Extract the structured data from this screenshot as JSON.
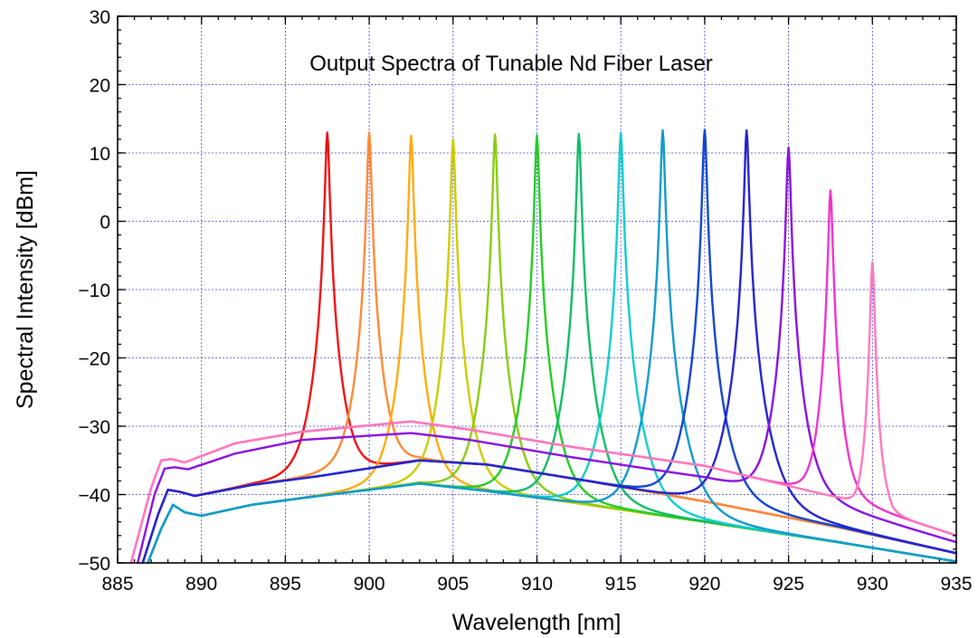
{
  "chart_data": {
    "type": "line",
    "title": "Output Spectra of Tunable Nd Fiber Laser",
    "xlabel": "Wavelength [nm]",
    "ylabel": "Spectral Intensity [dBm]",
    "xlim": [
      885,
      935
    ],
    "ylim": [
      -50,
      30
    ],
    "xticks": [
      "885",
      "890",
      "895",
      "900",
      "905",
      "910",
      "915",
      "920",
      "925",
      "930",
      "935"
    ],
    "yticks": [
      "30",
      "20",
      "10",
      "0",
      "−10",
      "−20",
      "−30",
      "−40",
      "−50"
    ],
    "grid": true,
    "legend": "none",
    "series": [
      {
        "color": "#ee1111",
        "peak_nm": 897.5,
        "peak_dbm": 13.0,
        "floor_dbm": -37.5,
        "shape": "upper-mid"
      },
      {
        "color": "#ff8833",
        "peak_nm": 900.0,
        "peak_dbm": 13.0,
        "floor_dbm": -36.5,
        "shape": "upper-mid"
      },
      {
        "color": "#ffaa11",
        "peak_nm": 902.5,
        "peak_dbm": 12.5,
        "floor_dbm": -40.0,
        "shape": "lower"
      },
      {
        "color": "#cccc00",
        "peak_nm": 905.0,
        "peak_dbm": 12.0,
        "floor_dbm": -39.0,
        "shape": "lower"
      },
      {
        "color": "#88cc11",
        "peak_nm": 907.5,
        "peak_dbm": 12.7,
        "floor_dbm": -39.5,
        "shape": "lower"
      },
      {
        "color": "#22cc22",
        "peak_nm": 910.0,
        "peak_dbm": 12.6,
        "floor_dbm": -39.5,
        "shape": "lower"
      },
      {
        "color": "#11bb66",
        "peak_nm": 912.5,
        "peak_dbm": 12.8,
        "floor_dbm": -40.5,
        "shape": "lower"
      },
      {
        "color": "#11cccc",
        "peak_nm": 915.0,
        "peak_dbm": 13.0,
        "floor_dbm": -41.5,
        "shape": "lower"
      },
      {
        "color": "#1199cc",
        "peak_nm": 917.5,
        "peak_dbm": 13.3,
        "floor_dbm": -42.5,
        "shape": "lower"
      },
      {
        "color": "#1144cc",
        "peak_nm": 920.0,
        "peak_dbm": 13.4,
        "floor_dbm": -41.0,
        "shape": "upper-mid"
      },
      {
        "color": "#2222cc",
        "peak_nm": 922.5,
        "peak_dbm": 13.3,
        "floor_dbm": -41.5,
        "shape": "upper-mid"
      },
      {
        "color": "#8811dd",
        "peak_nm": 925.0,
        "peak_dbm": 10.8,
        "floor_dbm": -40.0,
        "shape": "upper"
      },
      {
        "color": "#ee33cc",
        "peak_nm": 927.5,
        "peak_dbm": 4.5,
        "floor_dbm": -40.5,
        "shape": "top"
      },
      {
        "color": "#ff77bb",
        "peak_nm": 930.0,
        "peak_dbm": -6.0,
        "floor_dbm": -41.0,
        "shape": "top"
      }
    ]
  }
}
